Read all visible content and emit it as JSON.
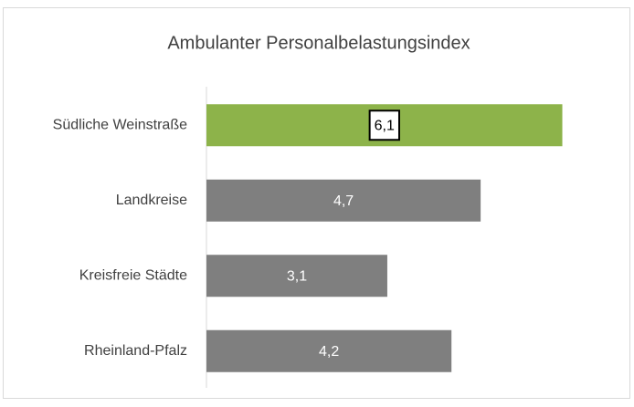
{
  "chart_data": {
    "type": "barh",
    "title": "Ambulanter Personalbelastungsindex",
    "categories": [
      "Südliche Weinstraße",
      "Landkreise",
      "Kreisfreie Städte",
      "Rheinland-Pfalz"
    ],
    "values": [
      6.1,
      4.7,
      3.1,
      4.2
    ],
    "value_labels": [
      "6,1",
      "4,7",
      "3,1",
      "4,2"
    ],
    "colors": [
      "#8db34a",
      "#7f7f7f",
      "#7f7f7f",
      "#7f7f7f"
    ],
    "xlim": [
      0,
      7
    ]
  }
}
